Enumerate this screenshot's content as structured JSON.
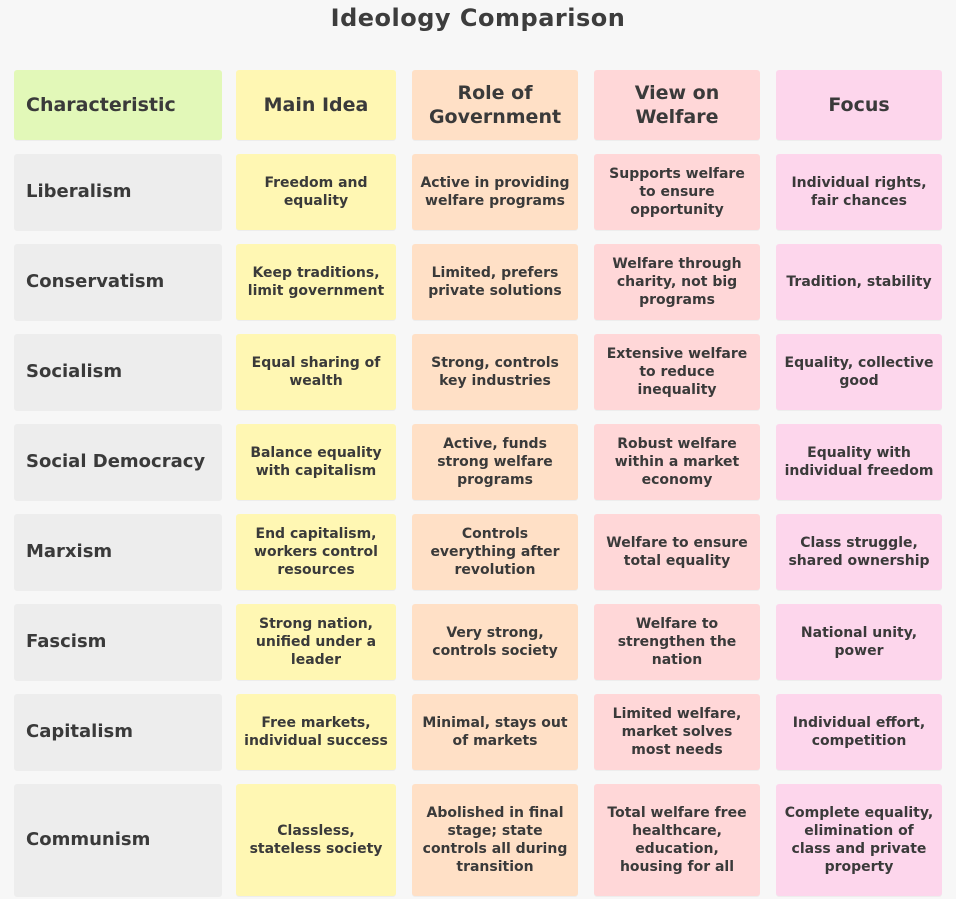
{
  "title": "Ideology Comparison",
  "colors": {
    "characteristic_header": "#e2f8b8",
    "ideology_column": "#ededed",
    "main_idea": "#fff7b3",
    "role_of_government": "#ffe0c6",
    "view_on_welfare": "#ffd7d8",
    "focus": "#fdd6ec"
  },
  "table": {
    "headers": [
      "Characteristic",
      "Main Idea",
      "Role of Government",
      "View on Welfare",
      "Focus"
    ],
    "rows": [
      [
        "Liberalism",
        "Freedom and equality",
        "Active in providing welfare programs",
        "Supports welfare to ensure opportunity",
        "Individual rights, fair chances"
      ],
      [
        "Conservatism",
        "Keep traditions, limit government",
        "Limited, prefers private solutions",
        "Welfare through charity, not big programs",
        "Tradition, stability"
      ],
      [
        "Socialism",
        "Equal sharing of wealth",
        "Strong, controls key industries",
        "Extensive welfare to reduce inequality",
        "Equality, collective good"
      ],
      [
        "Social Democracy",
        "Balance equality with capitalism",
        "Active, funds strong welfare programs",
        "Robust welfare within a market economy",
        "Equality with individual freedom"
      ],
      [
        "Marxism",
        "End capitalism, workers control resources",
        "Controls everything after revolution",
        "Welfare to ensure total equality",
        "Class struggle, shared ownership"
      ],
      [
        "Fascism",
        "Strong nation, unified under a leader",
        "Very strong, controls society",
        "Welfare to strengthen the nation",
        "National unity, power"
      ],
      [
        "Capitalism",
        "Free markets, individual success",
        "Minimal, stays out of markets",
        "Limited welfare, market solves most needs",
        "Individual effort, competition"
      ],
      [
        "Communism",
        "Classless, stateless society",
        "Abolished in final stage; state controls all during transition",
        "Total welfare free healthcare, education, housing for all",
        "Complete equality, elimination of class and private property"
      ]
    ]
  }
}
